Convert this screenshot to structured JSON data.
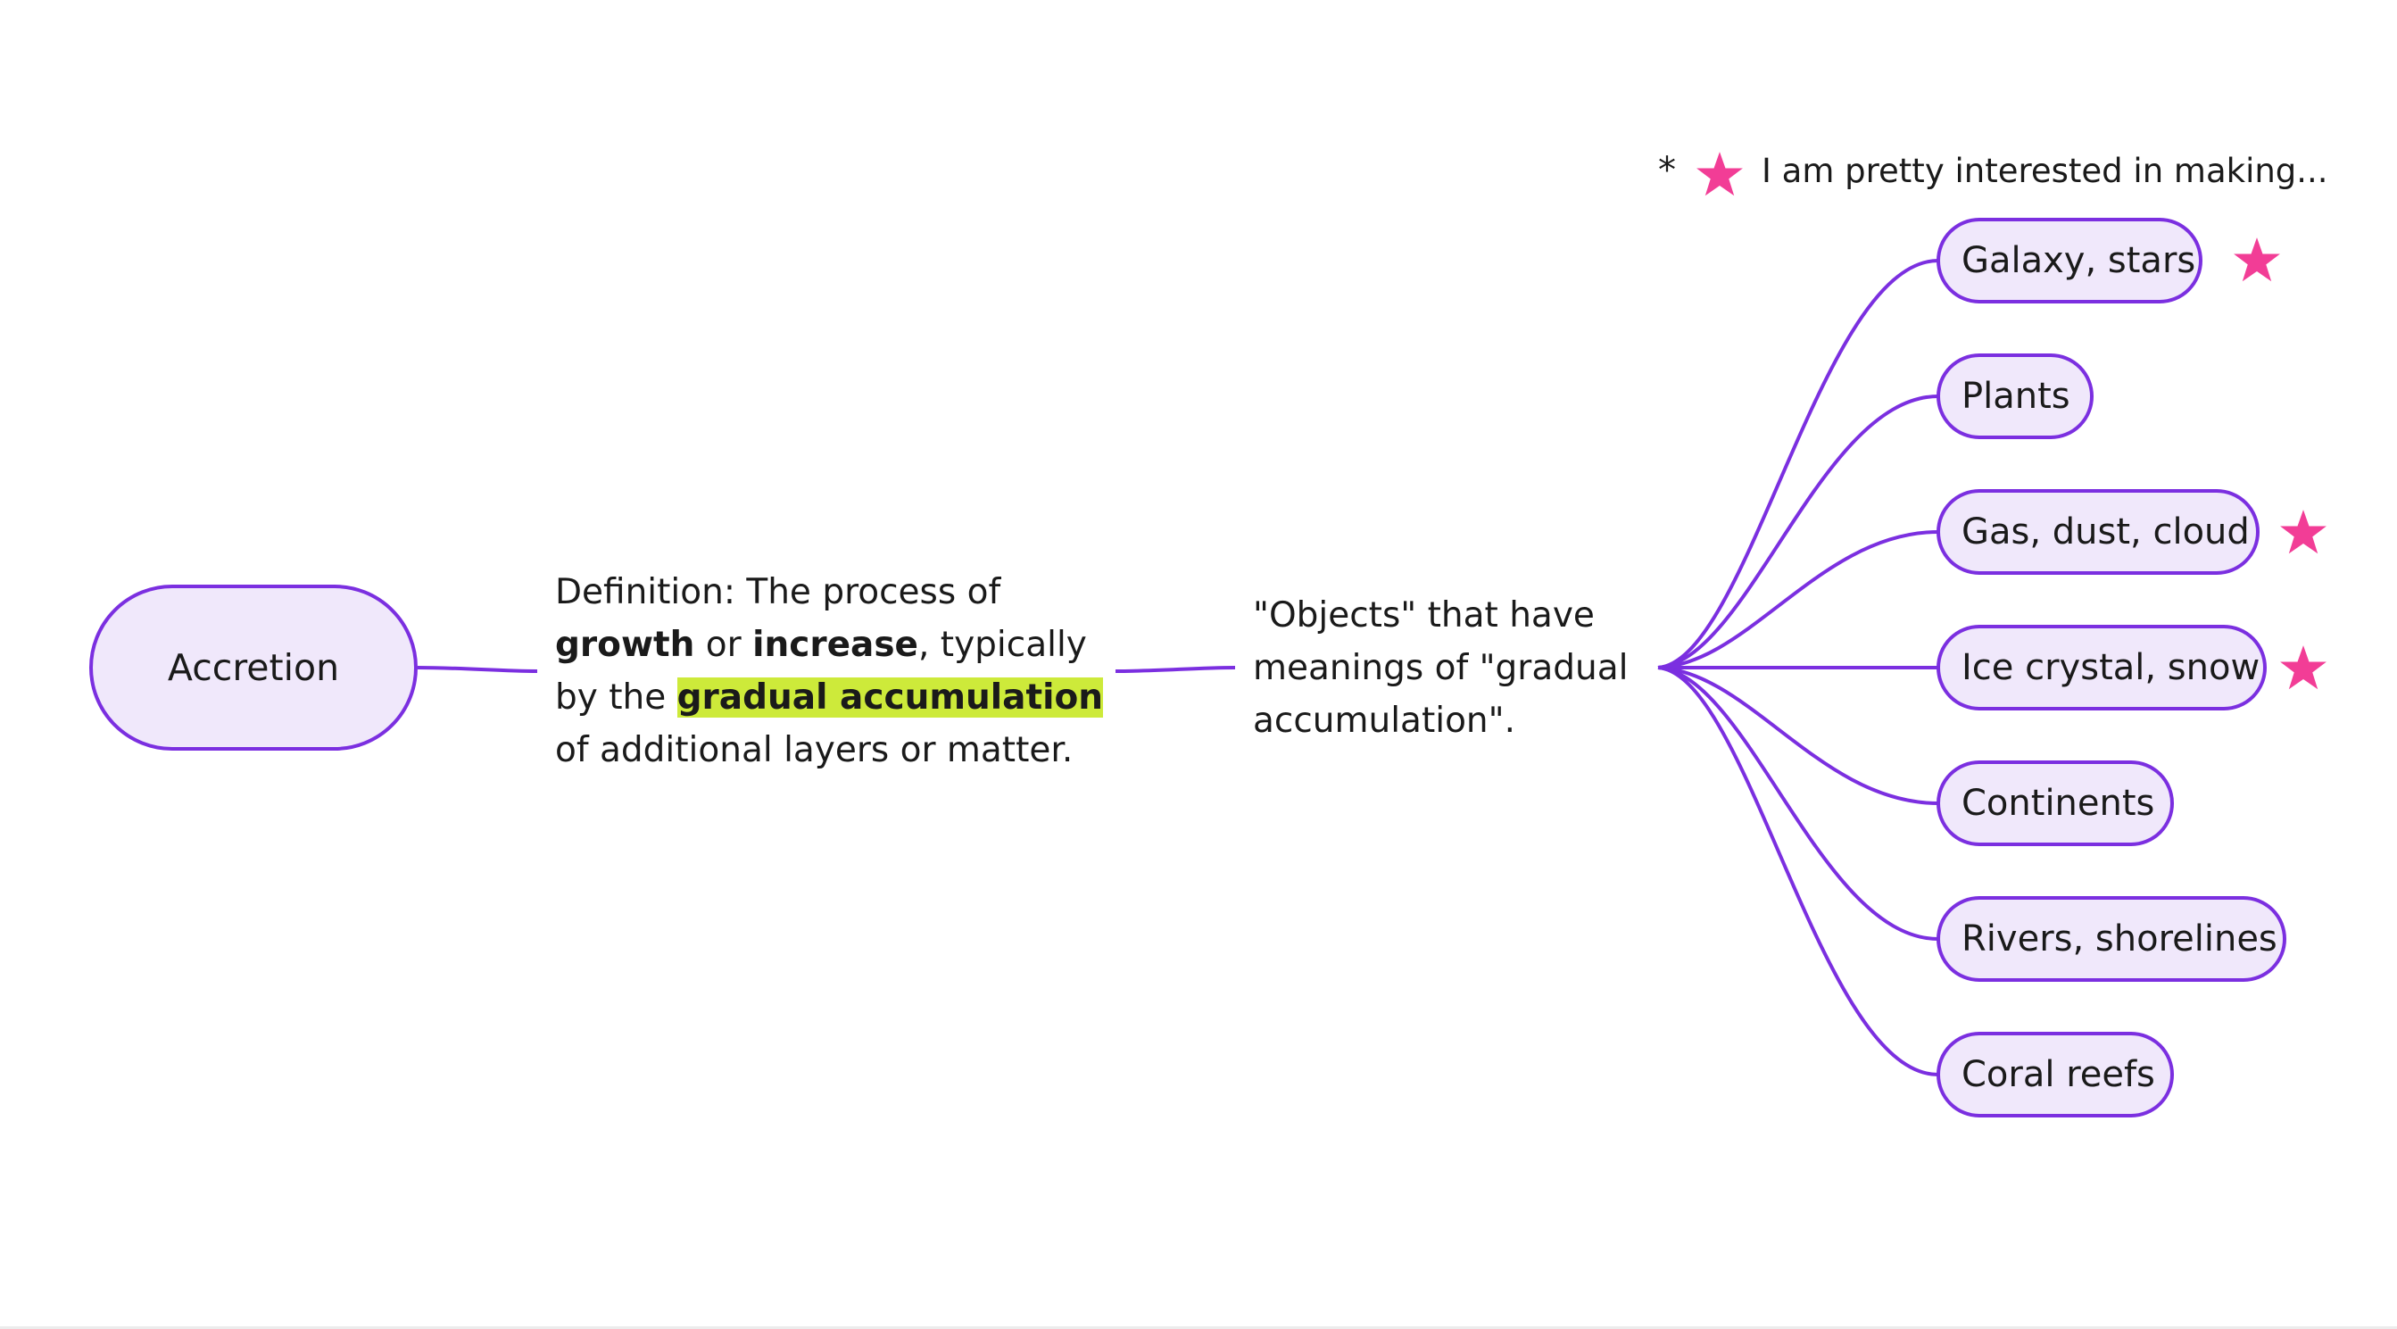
{
  "root": {
    "label": "Accretion"
  },
  "definition": {
    "line1": "Definition: The process of",
    "line2_bold_a": "growth",
    "line2_mid": " or ",
    "line2_bold_b": "increase",
    "line2_end": ", typically",
    "line3_start": "by the ",
    "line3_highlight": "gradual accumulation",
    "line4": "of additional layers or matter."
  },
  "objects": {
    "line1": "\"Objects\" that have",
    "line2": "meanings of \"gradual",
    "line3": "accumulation\"."
  },
  "note": {
    "asterisk": "*",
    "text": "I am pretty interested in making..."
  },
  "leaves": [
    {
      "label": "Galaxy, stars",
      "starred": true
    },
    {
      "label": "Plants",
      "starred": false
    },
    {
      "label": "Gas, dust, cloud",
      "starred": true
    },
    {
      "label": "Ice crystal, snow",
      "starred": true
    },
    {
      "label": "Continents",
      "starred": false
    },
    {
      "label": "Rivers, shorelines",
      "starred": false
    },
    {
      "label": "Coral reefs",
      "starred": false
    }
  ],
  "colors": {
    "line": "#7b2fe0",
    "node_fill": "#f0e8fb",
    "highlight": "#cdea3a",
    "star": "#f23d96"
  },
  "icons": {
    "star": "star-icon"
  }
}
